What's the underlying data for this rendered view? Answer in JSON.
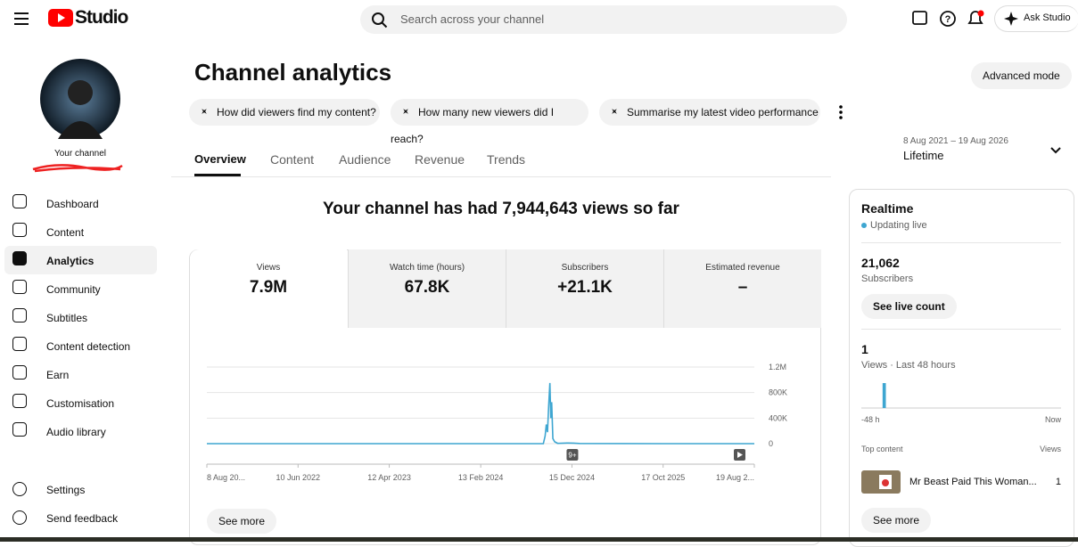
{
  "header": {
    "logo": "Studio",
    "search_placeholder": "Search across your channel",
    "ask": "Ask Studio"
  },
  "sidebar": {
    "channel_label": "Your channel",
    "nav": [
      "Dashboard",
      "Content",
      "Analytics",
      "Community",
      "Subtitles",
      "Content detection",
      "Earn",
      "Customisation",
      "Audio library"
    ],
    "footer_nav": [
      "Settings",
      "Send feedback"
    ]
  },
  "page": {
    "title": "Channel analytics",
    "advanced": "Advanced mode",
    "suggestions": [
      "How did viewers find my content?",
      "How many new viewers did I reach?",
      "Summarise my latest video performance"
    ],
    "tabs": [
      "Overview",
      "Content",
      "Audience",
      "Revenue",
      "Trends"
    ],
    "date_range": "8 Aug 2021 – 19 Aug 2026",
    "period": "Lifetime",
    "headline": "Your channel has had 7,944,643 views so far",
    "metrics": [
      {
        "label": "Views",
        "value": "7.9M"
      },
      {
        "label": "Watch time (hours)",
        "value": "67.8K"
      },
      {
        "label": "Subscribers",
        "value": "+21.1K"
      },
      {
        "label": "Estimated revenue",
        "value": "–"
      }
    ],
    "see_more": "See more"
  },
  "chart_data": {
    "type": "line",
    "color": "#3ea6d1",
    "grid": true,
    "x": [
      "2021-08-08",
      "2022-06-10",
      "2023-04-12",
      "2024-02-13",
      "2024-09-10",
      "2024-09-16",
      "2024-09-20",
      "2024-09-24",
      "2024-09-28",
      "2024-10-02",
      "2024-10-05",
      "2024-10-08",
      "2024-10-12",
      "2024-10-18",
      "2024-10-28",
      "2024-12-01",
      "2024-12-20",
      "2025-01-10",
      "2025-10-17",
      "2026-08-19"
    ],
    "values": [
      0,
      0,
      0,
      0,
      0,
      120000,
      300000,
      180000,
      600000,
      950000,
      400000,
      650000,
      80000,
      30000,
      5000,
      10000,
      8000,
      2000,
      0,
      0
    ],
    "xlim": [
      "2021-08-08",
      "2026-08-19"
    ],
    "xticks": [
      {
        "value": "2021-08-08",
        "label": "8 Aug 20..."
      },
      {
        "value": "2022-06-10",
        "label": "10 Jun 2022"
      },
      {
        "value": "2023-04-12",
        "label": "12 Apr 2023"
      },
      {
        "value": "2024-02-13",
        "label": "13 Feb 2024"
      },
      {
        "value": "2024-12-15",
        "label": "15 Dec 2024"
      },
      {
        "value": "2025-10-17",
        "label": "17 Oct 2025"
      },
      {
        "value": "2026-08-19",
        "label": "19 Aug 2..."
      }
    ],
    "ylim": [
      0,
      1200000
    ],
    "yticks": [
      0,
      {
        "value": 400000,
        "label": "400K"
      },
      {
        "value": 800000,
        "label": "800K"
      },
      {
        "value": 1200000,
        "label": "1.2M"
      }
    ],
    "annotations": [
      "9+"
    ]
  },
  "realtime": {
    "title": "Realtime",
    "status": "Updating live",
    "subscribers": "21,062",
    "subscribers_label": "Subscribers",
    "live_button": "See live count",
    "views": "1",
    "views_label": "Views · Last 48 hours",
    "axis_start": "-48 h",
    "axis_end": "Now",
    "bars": [
      0,
      0,
      0,
      0,
      0,
      1,
      0,
      0,
      0,
      0,
      0,
      0,
      0,
      0,
      0,
      0,
      0,
      0,
      0,
      0,
      0,
      0,
      0,
      0,
      0,
      0,
      0,
      0,
      0,
      0,
      0,
      0,
      0,
      0,
      0,
      0,
      0,
      0,
      0,
      0,
      0,
      0,
      0,
      0,
      0,
      0,
      0,
      0
    ],
    "top_content": "Top content",
    "top_views": "Views",
    "video_title": "Mr Beast Paid This Woman...",
    "video_views": "1",
    "see_more": "See more"
  }
}
